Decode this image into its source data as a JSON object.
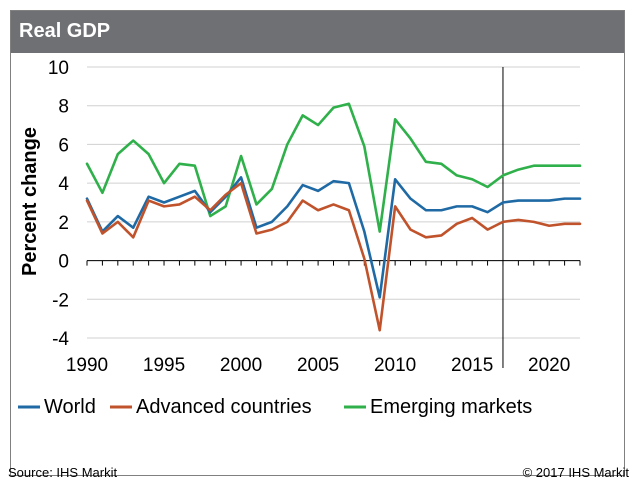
{
  "header": {
    "title": "Real GDP"
  },
  "footer": {
    "source": "Source: IHS Markit",
    "copyright": "© 2017 IHS Markit"
  },
  "colors": {
    "world": "#1f6aa5",
    "advanced": "#c0532b",
    "emerging": "#2fb04a",
    "header_bg": "#6f7074"
  },
  "chart_data": {
    "type": "line",
    "title": "Real GDP",
    "xlabel": "",
    "ylabel": "Percent change",
    "xlim": [
      1990,
      2022
    ],
    "ylim": [
      -4,
      10
    ],
    "xticks": [
      1990,
      1995,
      2000,
      2005,
      2010,
      2015,
      2020
    ],
    "yticks": [
      -4,
      -2,
      0,
      2,
      4,
      6,
      8,
      10
    ],
    "forecast_line_x": 2017,
    "grid": "horizontal",
    "legend_position": "bottom",
    "x": [
      1990,
      1991,
      1992,
      1993,
      1994,
      1995,
      1996,
      1997,
      1998,
      1999,
      2000,
      2001,
      2002,
      2003,
      2004,
      2005,
      2006,
      2007,
      2008,
      2009,
      2010,
      2011,
      2012,
      2013,
      2014,
      2015,
      2016,
      2017,
      2018,
      2019,
      2020,
      2021,
      2022
    ],
    "series": [
      {
        "name": "World",
        "key": "world",
        "values": [
          3.2,
          1.5,
          2.3,
          1.7,
          3.3,
          3.0,
          3.3,
          3.6,
          2.5,
          3.3,
          4.3,
          1.7,
          2.0,
          2.8,
          3.9,
          3.6,
          4.1,
          4.0,
          1.5,
          -1.9,
          4.2,
          3.2,
          2.6,
          2.6,
          2.8,
          2.8,
          2.5,
          3.0,
          3.1,
          3.1,
          3.1,
          3.2,
          3.2
        ]
      },
      {
        "name": "Advanced countries",
        "key": "advanced",
        "values": [
          3.1,
          1.4,
          2.0,
          1.2,
          3.1,
          2.8,
          2.9,
          3.3,
          2.6,
          3.4,
          4.0,
          1.4,
          1.6,
          2.0,
          3.1,
          2.6,
          2.9,
          2.6,
          0.1,
          -3.6,
          2.8,
          1.6,
          1.2,
          1.3,
          1.9,
          2.2,
          1.6,
          2.0,
          2.1,
          2.0,
          1.8,
          1.9,
          1.9
        ]
      },
      {
        "name": "Emerging markets",
        "key": "emerging",
        "values": [
          5.0,
          3.5,
          5.5,
          6.2,
          5.5,
          4.0,
          5.0,
          4.9,
          2.3,
          2.8,
          5.4,
          2.9,
          3.7,
          6.0,
          7.5,
          7.0,
          7.9,
          8.1,
          5.9,
          1.5,
          7.3,
          6.3,
          5.1,
          5.0,
          4.4,
          4.2,
          3.8,
          4.4,
          4.7,
          4.9,
          4.9,
          4.9,
          4.9
        ]
      }
    ]
  }
}
